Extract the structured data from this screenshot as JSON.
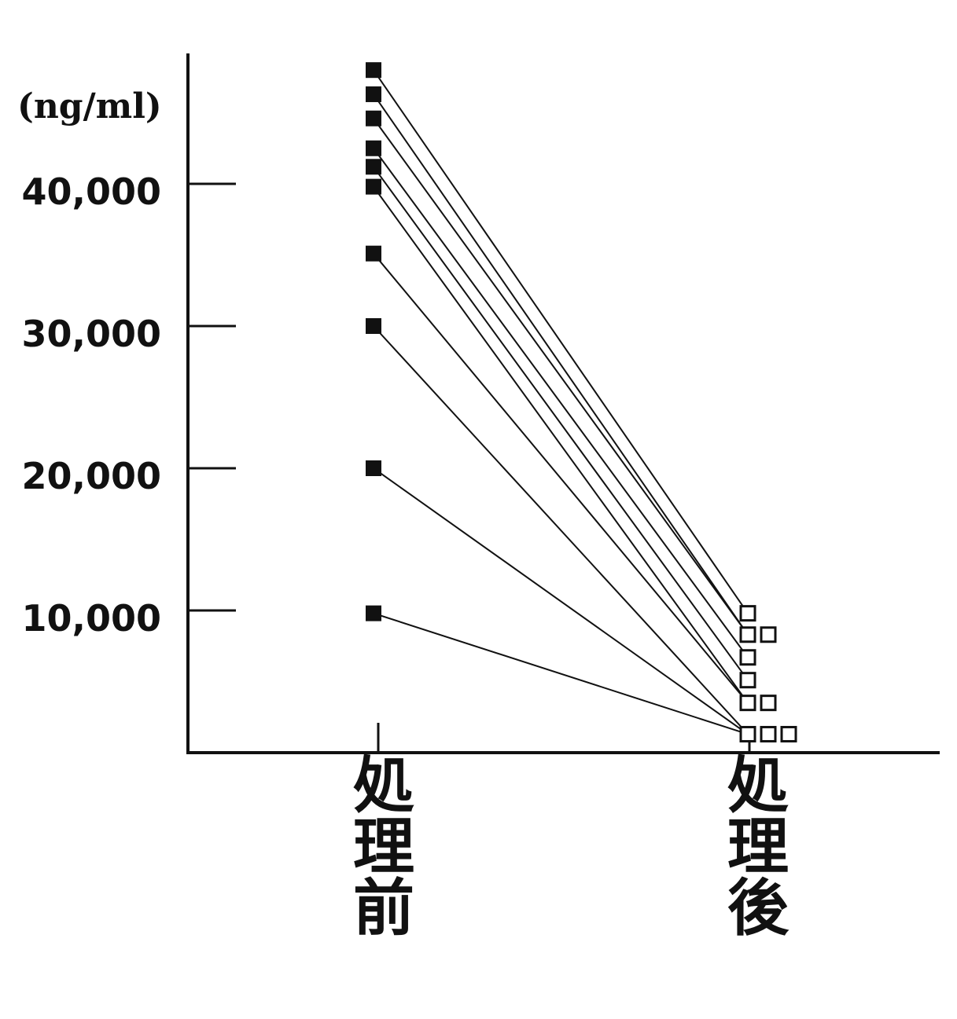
{
  "chart_data": {
    "type": "line",
    "unit_label": "(ng/ml)",
    "categories": [
      "処理前",
      "処理後"
    ],
    "yticks": [
      10000,
      20000,
      30000,
      40000
    ],
    "ytick_labels": [
      "10,000",
      "20,000",
      "30,000",
      "40,000"
    ],
    "ylim": [
      0,
      48500
    ],
    "marker_before": "filled-square",
    "marker_after": "open-square",
    "series": [
      {
        "values": [
          48000,
          9800
        ]
      },
      {
        "values": [
          46300,
          8300
        ]
      },
      {
        "values": [
          44600,
          8300
        ]
      },
      {
        "values": [
          42500,
          6700
        ]
      },
      {
        "values": [
          41200,
          5100
        ]
      },
      {
        "values": [
          39800,
          3500
        ]
      },
      {
        "values": [
          35100,
          3500
        ]
      },
      {
        "values": [
          30000,
          1300
        ]
      },
      {
        "values": [
          20000,
          1300
        ]
      },
      {
        "values": [
          9800,
          1300
        ]
      }
    ]
  }
}
